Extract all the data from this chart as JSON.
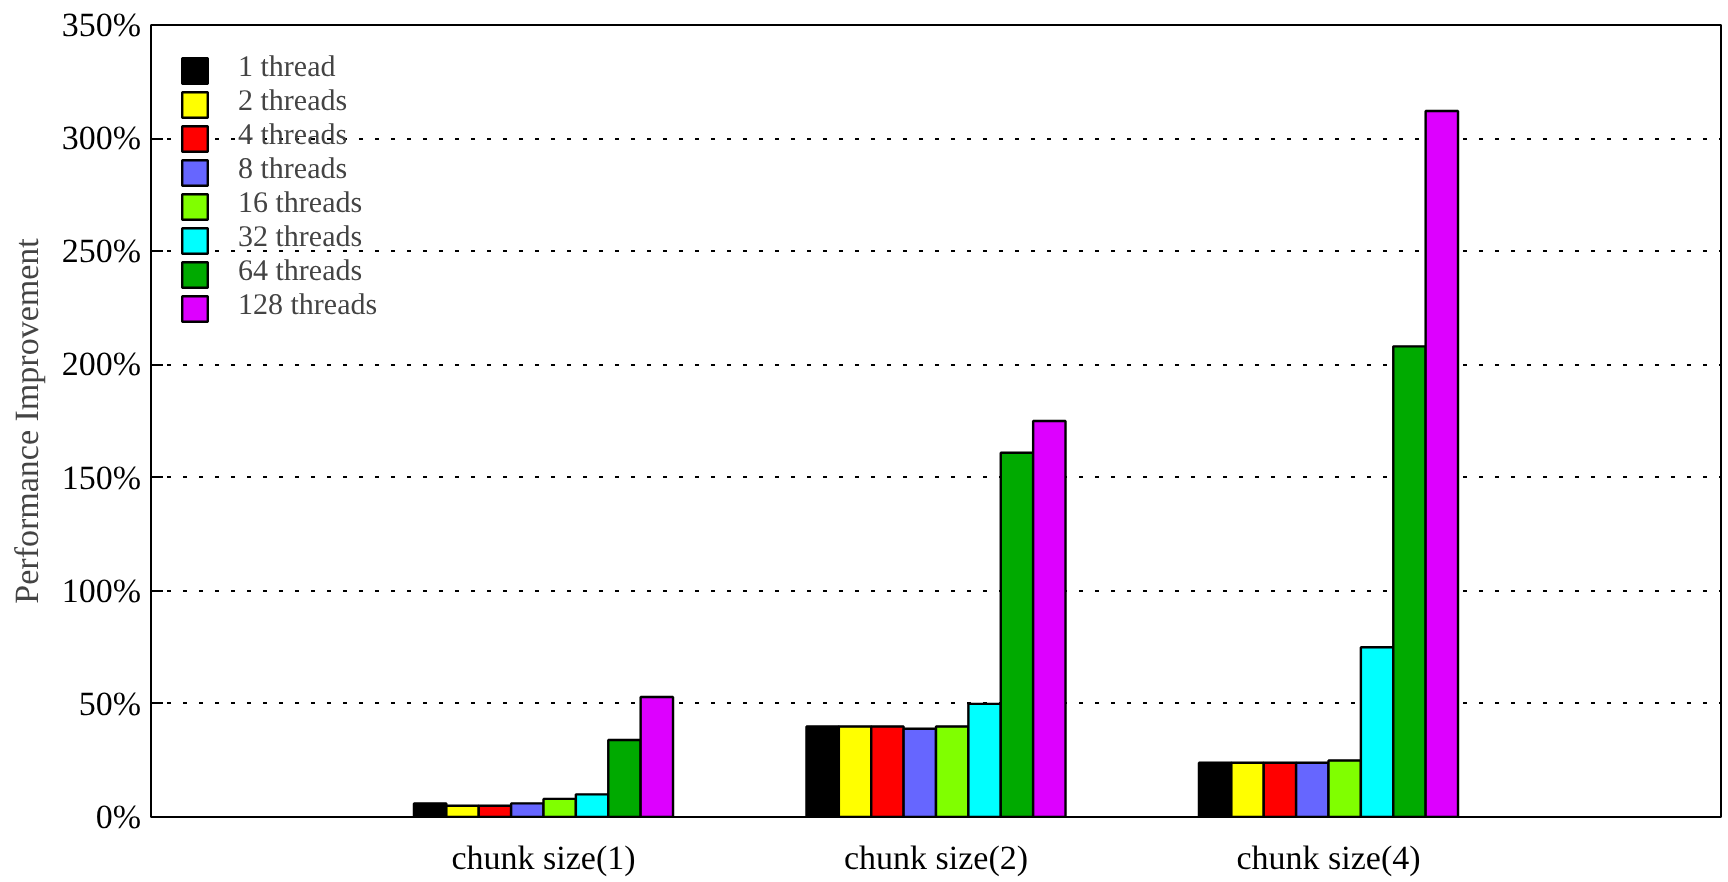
{
  "chart_data": {
    "type": "bar",
    "ylabel": "Performance Improvement",
    "categories": [
      "chunk size(1)",
      "chunk size(2)",
      "chunk size(4)"
    ],
    "series": [
      {
        "name": "1 thread",
        "color": "#000000",
        "values": [
          6,
          40,
          24
        ]
      },
      {
        "name": "2 threads",
        "color": "#ffff00",
        "values": [
          5,
          40,
          24
        ]
      },
      {
        "name": "4 threads",
        "color": "#ff0000",
        "values": [
          5,
          40,
          24
        ]
      },
      {
        "name": "8 threads",
        "color": "#6666ff",
        "values": [
          6,
          39,
          24
        ]
      },
      {
        "name": "16 threads",
        "color": "#80ff00",
        "values": [
          8,
          40,
          25
        ]
      },
      {
        "name": "32 threads",
        "color": "#00ffff",
        "values": [
          10,
          50,
          75
        ]
      },
      {
        "name": "64 threads",
        "color": "#00aa00",
        "values": [
          34,
          161,
          208
        ]
      },
      {
        "name": "128 threads",
        "color": "#dd00ff",
        "values": [
          53,
          175,
          312
        ]
      }
    ],
    "ylim": [
      0,
      350
    ],
    "yticks": [
      {
        "value": 0,
        "label": "0%"
      },
      {
        "value": 50,
        "label": "50%"
      },
      {
        "value": 100,
        "label": "100%"
      },
      {
        "value": 150,
        "label": "150%"
      },
      {
        "value": 200,
        "label": "200%"
      },
      {
        "value": 250,
        "label": "250%"
      },
      {
        "value": 300,
        "label": "300%"
      },
      {
        "value": 350,
        "label": "350%"
      }
    ],
    "grid": "y",
    "legend": "top left"
  }
}
